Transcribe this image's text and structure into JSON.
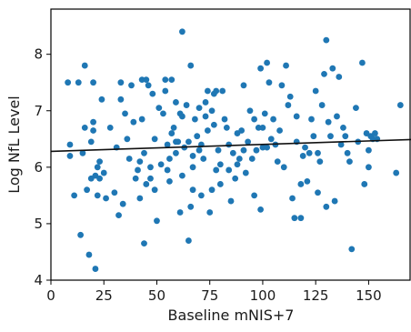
{
  "chart_data": {
    "type": "scatter",
    "xlabel": "Baseline mNIS+7",
    "ylabel": "Log NfL Level",
    "xlim": [
      0,
      170
    ],
    "ylim": [
      4,
      8.8
    ],
    "x_ticks": [
      0,
      25,
      50,
      75,
      100,
      125,
      150
    ],
    "y_ticks": [
      4,
      5,
      6,
      7,
      8
    ],
    "grid": false,
    "point_color": "#1f77b4",
    "line_color": "#111111",
    "fit_line": {
      "x": [
        0,
        170
      ],
      "y": [
        6.28,
        6.49
      ]
    },
    "points": [
      [
        8,
        7.5
      ],
      [
        9,
        6.4
      ],
      [
        9,
        6.2
      ],
      [
        11,
        5.5
      ],
      [
        13,
        7.5
      ],
      [
        14,
        4.8
      ],
      [
        15,
        6.25
      ],
      [
        16,
        7.8
      ],
      [
        16,
        6.7
      ],
      [
        17,
        5.6
      ],
      [
        18,
        4.45
      ],
      [
        19,
        5.8
      ],
      [
        19,
        6.45
      ],
      [
        20,
        7.5
      ],
      [
        20,
        6.8
      ],
      [
        20,
        6.65
      ],
      [
        21,
        5.85
      ],
      [
        21,
        4.2
      ],
      [
        22,
        6.0
      ],
      [
        22,
        5.5
      ],
      [
        23,
        6.1
      ],
      [
        23,
        5.8
      ],
      [
        24,
        7.2
      ],
      [
        25,
        5.9
      ],
      [
        26,
        5.45
      ],
      [
        28,
        6.7
      ],
      [
        30,
        5.55
      ],
      [
        31,
        6.35
      ],
      [
        32,
        5.15
      ],
      [
        33,
        7.5
      ],
      [
        33,
        7.2
      ],
      [
        34,
        5.35
      ],
      [
        35,
        6.95
      ],
      [
        36,
        6.5
      ],
      [
        37,
        6.15
      ],
      [
        38,
        7.45
      ],
      [
        39,
        6.8
      ],
      [
        40,
        5.8
      ],
      [
        41,
        5.95
      ],
      [
        42,
        6.1
      ],
      [
        42,
        5.45
      ],
      [
        43,
        7.55
      ],
      [
        43,
        6.85
      ],
      [
        44,
        6.25
      ],
      [
        44,
        4.65
      ],
      [
        45,
        5.7
      ],
      [
        45,
        7.55
      ],
      [
        46,
        7.45
      ],
      [
        47,
        6.0
      ],
      [
        47,
        5.8
      ],
      [
        48,
        7.3
      ],
      [
        49,
        6.5
      ],
      [
        49,
        5.6
      ],
      [
        50,
        5.05
      ],
      [
        51,
        7.05
      ],
      [
        52,
        6.05
      ],
      [
        53,
        6.95
      ],
      [
        54,
        7.55
      ],
      [
        54,
        7.35
      ],
      [
        55,
        6.4
      ],
      [
        55,
        5.95
      ],
      [
        56,
        5.75
      ],
      [
        57,
        7.55
      ],
      [
        57,
        6.6
      ],
      [
        58,
        6.7
      ],
      [
        59,
        7.15
      ],
      [
        59,
        6.45
      ],
      [
        59,
        6.25
      ],
      [
        60,
        6.45
      ],
      [
        61,
        5.2
      ],
      [
        61,
        6.95
      ],
      [
        62,
        6.9
      ],
      [
        62,
        8.4
      ],
      [
        62,
        5.85
      ],
      [
        63,
        6.35
      ],
      [
        64,
        7.1
      ],
      [
        65,
        6.45
      ],
      [
        65,
        4.7
      ],
      [
        66,
        5.3
      ],
      [
        66,
        7.8
      ],
      [
        67,
        6.2
      ],
      [
        67,
        6.0
      ],
      [
        67,
        5.6
      ],
      [
        68,
        6.85
      ],
      [
        69,
        6.55
      ],
      [
        70,
        7.05
      ],
      [
        70,
        6.3
      ],
      [
        71,
        6.4
      ],
      [
        71,
        5.5
      ],
      [
        72,
        6.15
      ],
      [
        73,
        7.15
      ],
      [
        73,
        6.9
      ],
      [
        74,
        7.35
      ],
      [
        74,
        6.65
      ],
      [
        75,
        5.2
      ],
      [
        76,
        5.6
      ],
      [
        76,
        7.0
      ],
      [
        77,
        7.3
      ],
      [
        77,
        6.75
      ],
      [
        78,
        5.95
      ],
      [
        78,
        7.35
      ],
      [
        79,
        6.3
      ],
      [
        80,
        5.7
      ],
      [
        80,
        6.05
      ],
      [
        81,
        7.35
      ],
      [
        82,
        6.85
      ],
      [
        83,
        6.7
      ],
      [
        84,
        5.95
      ],
      [
        85,
        5.4
      ],
      [
        86,
        6.25
      ],
      [
        87,
        5.8
      ],
      [
        88,
        6.6
      ],
      [
        88,
        6.05
      ],
      [
        89,
        6.15
      ],
      [
        90,
        6.65
      ],
      [
        91,
        7.45
      ],
      [
        91,
        6.3
      ],
      [
        92,
        5.9
      ],
      [
        93,
        6.45
      ],
      [
        94,
        7.0
      ],
      [
        95,
        6.15
      ],
      [
        96,
        6.85
      ],
      [
        96,
        5.5
      ],
      [
        97,
        6.3
      ],
      [
        98,
        6.7
      ],
      [
        99,
        7.75
      ],
      [
        99,
        5.25
      ],
      [
        100,
        6.35
      ],
      [
        100,
        6.7
      ],
      [
        101,
        6.95
      ],
      [
        102,
        7.85
      ],
      [
        102,
        6.35
      ],
      [
        103,
        7.5
      ],
      [
        104,
        6.5
      ],
      [
        105,
        6.85
      ],
      [
        106,
        6.4
      ],
      [
        107,
        6.1
      ],
      [
        108,
        6.65
      ],
      [
        109,
        7.45
      ],
      [
        110,
        6.0
      ],
      [
        111,
        7.8
      ],
      [
        112,
        7.1
      ],
      [
        113,
        7.25
      ],
      [
        114,
        5.45
      ],
      [
        115,
        5.1
      ],
      [
        116,
        6.45
      ],
      [
        118,
        5.7
      ],
      [
        118,
        5.1
      ],
      [
        119,
        6.2
      ],
      [
        120,
        6.35
      ],
      [
        121,
        5.75
      ],
      [
        122,
        6.25
      ],
      [
        123,
        6.85
      ],
      [
        124,
        6.55
      ],
      [
        125,
        7.35
      ],
      [
        126,
        6.25
      ],
      [
        126,
        5.55
      ],
      [
        127,
        6.1
      ],
      [
        128,
        7.1
      ],
      [
        129,
        7.65
      ],
      [
        130,
        8.25
      ],
      [
        130,
        5.3
      ],
      [
        131,
        6.8
      ],
      [
        132,
        6.55
      ],
      [
        133,
        7.75
      ],
      [
        134,
        5.4
      ],
      [
        135,
        6.9
      ],
      [
        136,
        7.6
      ],
      [
        137,
        6.4
      ],
      [
        138,
        6.7
      ],
      [
        139,
        6.55
      ],
      [
        140,
        6.25
      ],
      [
        141,
        6.1
      ],
      [
        142,
        4.55
      ],
      [
        144,
        7.05
      ],
      [
        145,
        6.45
      ],
      [
        147,
        7.85
      ],
      [
        148,
        5.7
      ],
      [
        149,
        6.6
      ],
      [
        150,
        6.0
      ],
      [
        150,
        6.3
      ],
      [
        151,
        6.55
      ],
      [
        152,
        6.5
      ],
      [
        153,
        6.6
      ],
      [
        154,
        6.5
      ],
      [
        163,
        5.9
      ],
      [
        165,
        7.1
      ],
      [
        116,
        6.9
      ],
      [
        84,
        6.4
      ],
      [
        56,
        6.15
      ]
    ]
  }
}
